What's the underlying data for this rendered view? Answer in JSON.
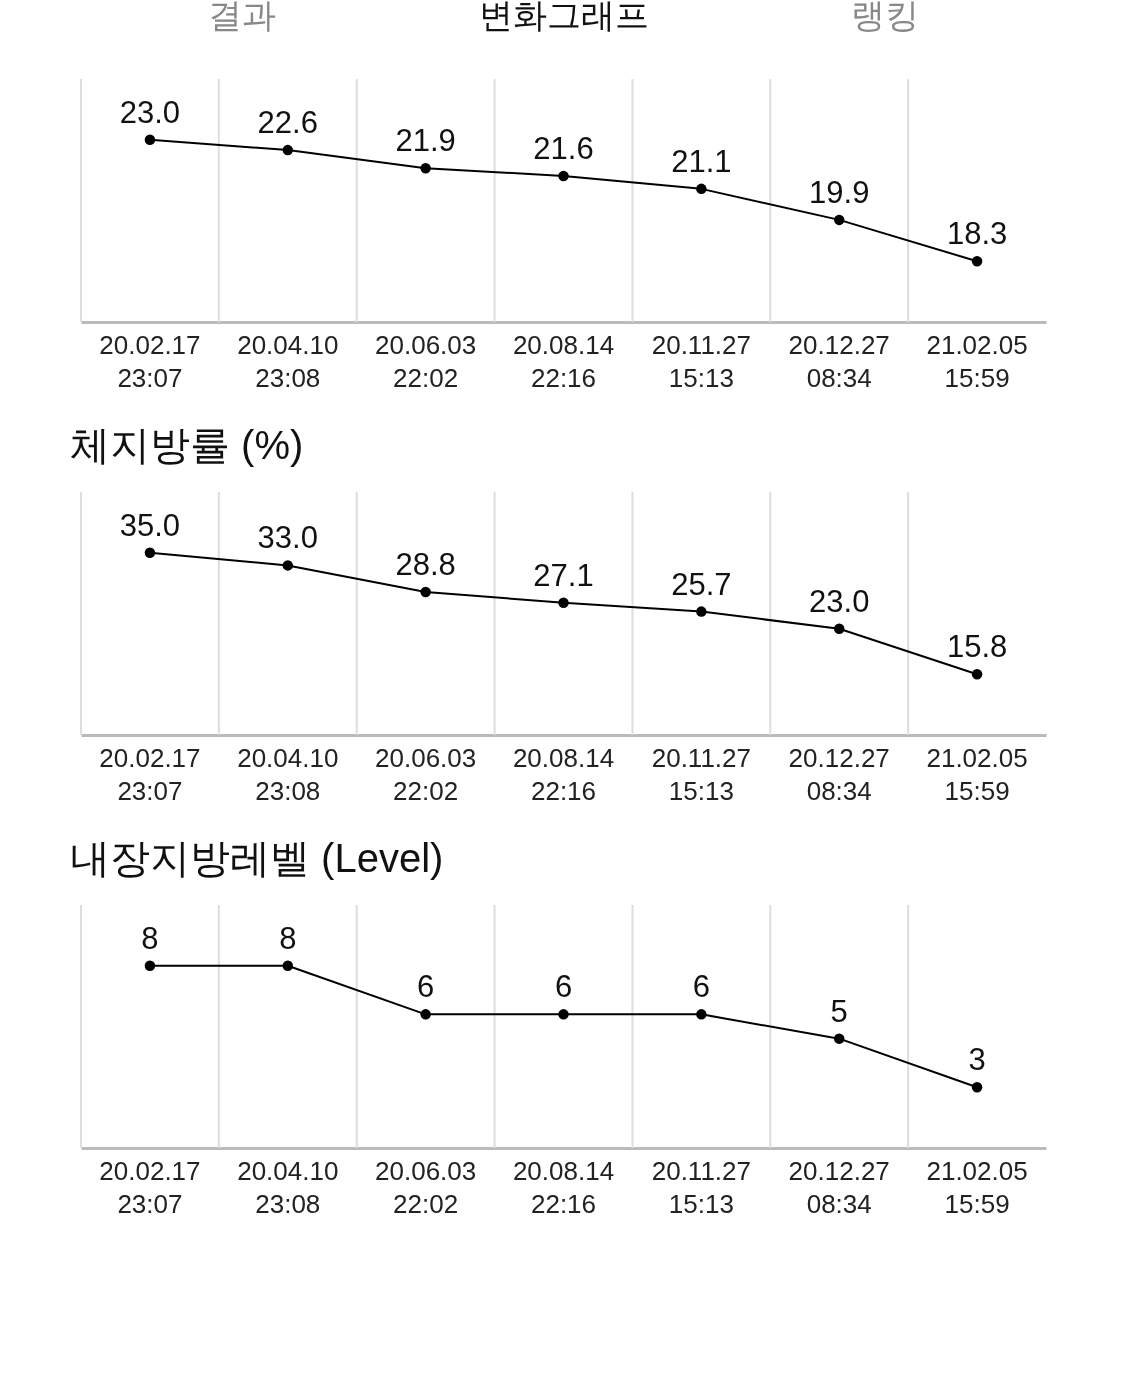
{
  "chart_data": [
    {
      "type": "line",
      "annotations": [
        "결과",
        "변화그래프",
        "랭킹"
      ],
      "categories": [
        "20.02.17 23:07",
        "20.04.10 23:08",
        "20.06.03 22:02",
        "20.08.14 22:16",
        "20.11.27 15:13",
        "20.12.27 08:34",
        "21.02.05 15:59"
      ],
      "values": [
        23.0,
        22.6,
        21.9,
        21.6,
        21.1,
        19.9,
        18.3
      ],
      "value_labels": [
        "23.0",
        "22.6",
        "21.9",
        "21.6",
        "21.1",
        "19.9",
        "18.3"
      ],
      "color": "#000000",
      "marker": "circle",
      "line_style": "solid",
      "grid": "x",
      "tick_labels": "x"
    },
    {
      "type": "line",
      "title": "체지방률 (%)",
      "categories": [
        "20.02.17 23:07",
        "20.04.10 23:08",
        "20.06.03 22:02",
        "20.08.14 22:16",
        "20.11.27 15:13",
        "20.12.27 08:34",
        "21.02.05 15:59"
      ],
      "values": [
        35.0,
        33.0,
        28.8,
        27.1,
        25.7,
        23.0,
        15.8
      ],
      "value_labels": [
        "35.0",
        "33.0",
        "28.8",
        "27.1",
        "25.7",
        "23.0",
        "15.8"
      ],
      "color": "#000000",
      "marker": "circle",
      "line_style": "solid",
      "grid": "x",
      "tick_labels": "x"
    },
    {
      "type": "line",
      "title": "내장지방레벨 (Level)",
      "categories": [
        "20.02.17 23:07",
        "20.04.10 23:08",
        "20.06.03 22:02",
        "20.08.14 22:16",
        "20.11.27 15:13",
        "20.12.27 08:34",
        "21.02.05 15:59"
      ],
      "values": [
        8,
        8,
        6,
        6,
        6,
        5,
        3
      ],
      "color": "#000000",
      "data_labels": true,
      "marker": "circle",
      "line_style": "solid",
      "grid": "x",
      "tick_labels": "x"
    }
  ]
}
